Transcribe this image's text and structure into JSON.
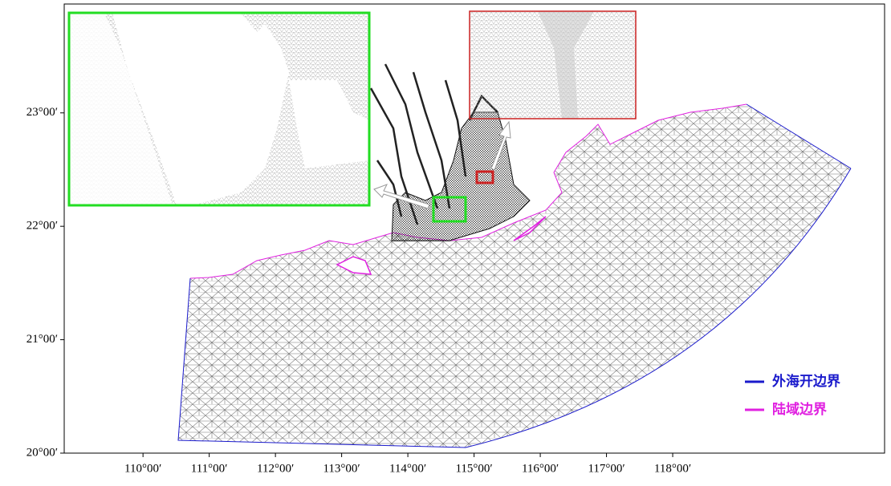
{
  "map": {
    "xlim": [
      108.81,
      121.2
    ],
    "ylim": [
      20,
      23.96
    ],
    "x_ticks": [
      {
        "value": 110,
        "label": "110°00′"
      },
      {
        "value": 111,
        "label": "111°00′"
      },
      {
        "value": 112,
        "label": "112°00′"
      },
      {
        "value": 113,
        "label": "113°00′"
      },
      {
        "value": 114,
        "label": "114°00′"
      },
      {
        "value": 115,
        "label": "115°00′"
      },
      {
        "value": 116,
        "label": "116°00′"
      },
      {
        "value": 117,
        "label": "117°00′"
      },
      {
        "value": 118,
        "label": "118°00′"
      }
    ],
    "y_ticks": [
      {
        "value": 20,
        "label": "20°00′"
      },
      {
        "value": 21,
        "label": "21°00′"
      },
      {
        "value": 22,
        "label": "22°00′"
      },
      {
        "value": 23,
        "label": "23°00′"
      }
    ],
    "legend": [
      {
        "label": "外海开边界",
        "color": "#1a1acc"
      },
      {
        "label": "陆域边界",
        "color": "#e020e0"
      }
    ]
  }
}
